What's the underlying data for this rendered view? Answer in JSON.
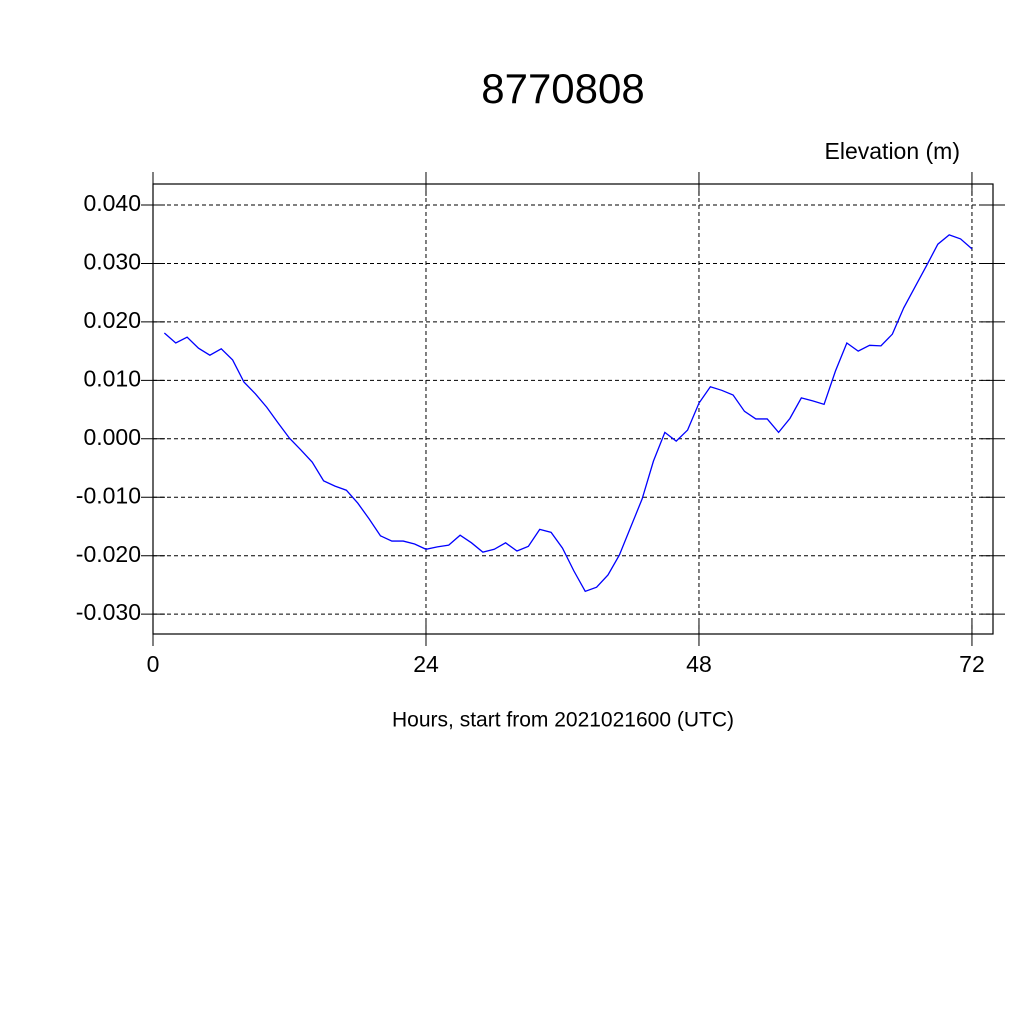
{
  "chart_data": {
    "type": "line",
    "title": "8770808",
    "subtitle": "Elevation (m)",
    "x_label": "Hours, start from 2021021600 (UTC)",
    "x": [
      1,
      2,
      3,
      4,
      5,
      6,
      7,
      8,
      9,
      10,
      11,
      12,
      13,
      14,
      15,
      16,
      17,
      18,
      19,
      20,
      21,
      22,
      23,
      24,
      25,
      26,
      27,
      28,
      29,
      30,
      31,
      32,
      33,
      34,
      35,
      36,
      37,
      38,
      39,
      40,
      41,
      42,
      43,
      44,
      45,
      46,
      47,
      48,
      49,
      50,
      51,
      52,
      53,
      54,
      55,
      56,
      57,
      58,
      59,
      60,
      61,
      62,
      63,
      64,
      65,
      66,
      67,
      68,
      69,
      70,
      71,
      72
    ],
    "series": [
      {
        "color": "#0000ff",
        "values": [
          0.0181,
          0.0164,
          0.0174,
          0.0155,
          0.0143,
          0.0154,
          0.0135,
          0.0097,
          0.0077,
          0.0054,
          0.0027,
          0.0001,
          -0.0019,
          -0.004,
          -0.0072,
          -0.0081,
          -0.0088,
          -0.011,
          -0.0137,
          -0.0166,
          -0.0175,
          -0.0175,
          -0.018,
          -0.0189,
          -0.0185,
          -0.0182,
          -0.0165,
          -0.0178,
          -0.0194,
          -0.0189,
          -0.0178,
          -0.0192,
          -0.0184,
          -0.0155,
          -0.016,
          -0.0187,
          -0.0226,
          -0.0261,
          -0.0254,
          -0.0233,
          -0.0199,
          -0.0151,
          -0.0103,
          -0.0038,
          0.0011,
          -0.0004,
          0.0015,
          0.0061,
          0.0089,
          0.0083,
          0.0075,
          0.0047,
          0.0034,
          0.0034,
          0.0011,
          0.0035,
          0.007,
          0.0065,
          0.0059,
          0.0116,
          0.0164,
          0.015,
          0.016,
          0.0159,
          0.0179,
          0.0224,
          0.026,
          0.0296,
          0.0333,
          0.0349,
          0.0342,
          0.0325
        ]
      }
    ],
    "xlim": [
      0,
      73.85
    ],
    "xticks": [
      0,
      24,
      48,
      72
    ],
    "ylim": [
      -0.0334,
      0.0436
    ],
    "yticks": [
      {
        "value": -0.03,
        "label": "-0.030"
      },
      {
        "value": -0.02,
        "label": "-0.020"
      },
      {
        "value": -0.01,
        "label": "-0.010"
      },
      {
        "value": 0,
        "label": "0.000"
      },
      {
        "value": 0.01,
        "label": "0.010"
      },
      {
        "value": 0.02,
        "label": "0.020"
      },
      {
        "value": 0.03,
        "label": "0.030"
      },
      {
        "value": 0.04,
        "label": "0.040"
      }
    ],
    "grid": true
  }
}
